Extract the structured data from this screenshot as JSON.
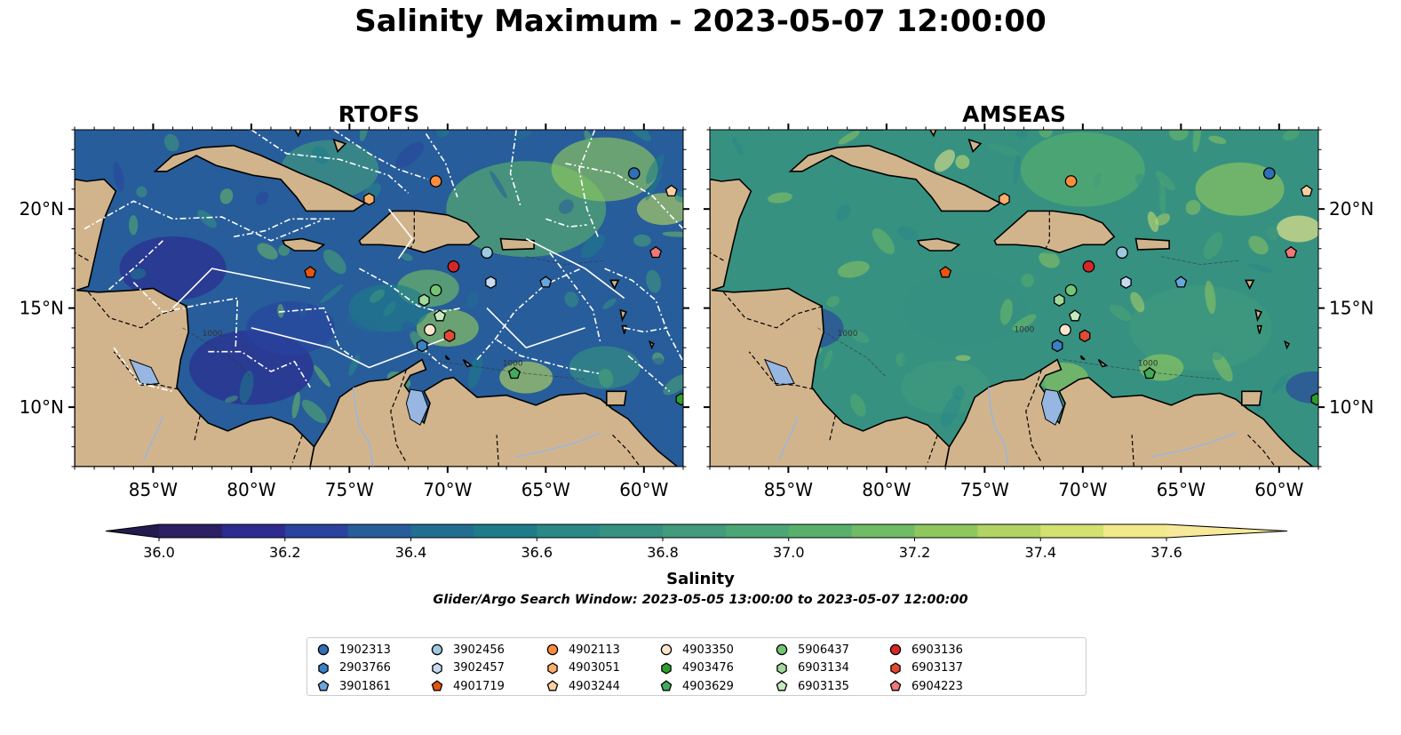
{
  "chart_data": {
    "type": "heatmap",
    "title": "Salinity Maximum - 2023-05-07 12:00:00",
    "colorbar": {
      "label": "Salinity",
      "min": 36.0,
      "max": 37.6,
      "step": 0.1,
      "extend": "both",
      "ticks": [
        "36.0",
        "36.2",
        "36.4",
        "36.6",
        "36.8",
        "37.0",
        "37.2",
        "37.4",
        "37.6"
      ],
      "colors": [
        "#2c1f63",
        "#2d2a8f",
        "#29439e",
        "#275d9a",
        "#226e92",
        "#1e7b8a",
        "#2a8886",
        "#369181",
        "#419b7c",
        "#4ca575",
        "#58af6c",
        "#70bb65",
        "#8fc75e",
        "#b0d363",
        "#d3e16f",
        "#f2ea8a"
      ],
      "under_color": "#231a4d",
      "over_color": "#f7e99a"
    },
    "subtitle": "Glider/Argo Search Window: 2023-05-05 13:00:00 to 2023-05-07 12:00:00",
    "extent": {
      "lon": [
        -89,
        -58
      ],
      "lat": [
        7,
        24
      ]
    },
    "x_ticks": [
      "85°W",
      "80°W",
      "75°W",
      "70°W",
      "65°W",
      "60°W"
    ],
    "y_ticks": [
      "20°N",
      "15°N",
      "10°N"
    ],
    "panels": [
      {
        "title": "RTOFS",
        "base_salinity": 36.4,
        "contour_labels": [
          "1000",
          "1000"
        ]
      },
      {
        "title": "AMSEAS",
        "base_salinity": 36.8,
        "contour_labels": [
          "1000",
          "1000",
          "1000"
        ]
      }
    ],
    "floats": [
      {
        "id": "1902313",
        "lon": -60.5,
        "lat": 21.8,
        "marker": "circle",
        "color": "#2f6fb5"
      },
      {
        "id": "2903766",
        "lon": -71.3,
        "lat": 13.1,
        "marker": "hexagon",
        "color": "#3a80c4"
      },
      {
        "id": "3901861",
        "lon": -65.0,
        "lat": 16.3,
        "marker": "pentagon",
        "color": "#6aa6dc"
      },
      {
        "id": "3902456",
        "lon": -68.0,
        "lat": 17.8,
        "marker": "circle",
        "color": "#9ecae1"
      },
      {
        "id": "3902457",
        "lon": -67.8,
        "lat": 16.3,
        "marker": "hexagon",
        "color": "#c6dbef"
      },
      {
        "id": "4901719",
        "lon": -77.0,
        "lat": 16.8,
        "marker": "pentagon",
        "color": "#e6550d"
      },
      {
        "id": "4902113",
        "lon": -70.6,
        "lat": 21.4,
        "marker": "circle",
        "color": "#fd8d3c"
      },
      {
        "id": "4903051",
        "lon": -74.0,
        "lat": 20.5,
        "marker": "hexagon",
        "color": "#fdae6b"
      },
      {
        "id": "4903244",
        "lon": -58.6,
        "lat": 20.9,
        "marker": "pentagon",
        "color": "#fdd0a2"
      },
      {
        "id": "4903350",
        "lon": -70.9,
        "lat": 13.9,
        "marker": "circle",
        "color": "#fee6ce"
      },
      {
        "id": "4903476",
        "lon": -58.1,
        "lat": 10.4,
        "marker": "hexagon",
        "color": "#2ca02c"
      },
      {
        "id": "4903629",
        "lon": -66.6,
        "lat": 11.7,
        "marker": "pentagon",
        "color": "#41ab5d"
      },
      {
        "id": "5906437",
        "lon": -70.6,
        "lat": 15.9,
        "marker": "circle",
        "color": "#74c476"
      },
      {
        "id": "6903134",
        "lon": -71.2,
        "lat": 15.4,
        "marker": "hexagon",
        "color": "#a1d99b"
      },
      {
        "id": "6903135",
        "lon": -70.4,
        "lat": 14.6,
        "marker": "pentagon",
        "color": "#c7e9c0"
      },
      {
        "id": "6903136",
        "lon": -69.7,
        "lat": 17.1,
        "marker": "circle",
        "color": "#d62728"
      },
      {
        "id": "6903137",
        "lon": -69.9,
        "lat": 13.6,
        "marker": "hexagon",
        "color": "#e34a33"
      },
      {
        "id": "6904223",
        "lon": -59.4,
        "lat": 17.8,
        "marker": "pentagon",
        "color": "#f07878"
      }
    ]
  }
}
